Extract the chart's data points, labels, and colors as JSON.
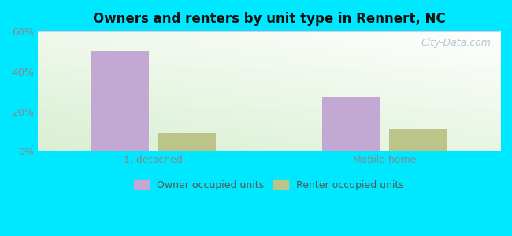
{
  "title": "Owners and renters by unit type in Rennert, NC",
  "categories": [
    "1, detached",
    "Mobile home"
  ],
  "owner_values": [
    50.0,
    27.5
  ],
  "renter_values": [
    9.0,
    11.0
  ],
  "owner_color": "#c4a8d4",
  "renter_color": "#bcc48a",
  "ylim": [
    0,
    60
  ],
  "yticks": [
    0,
    20,
    40,
    60
  ],
  "yticklabels": [
    "0%",
    "20%",
    "40%",
    "60%"
  ],
  "bar_width": 0.25,
  "legend_owner": "Owner occupied units",
  "legend_renter": "Renter occupied units",
  "bg_outer": "#00e8ff",
  "watermark": "City-Data.com",
  "grid_color": "#dddddd",
  "tick_color": "#888888",
  "title_color": "#111111"
}
